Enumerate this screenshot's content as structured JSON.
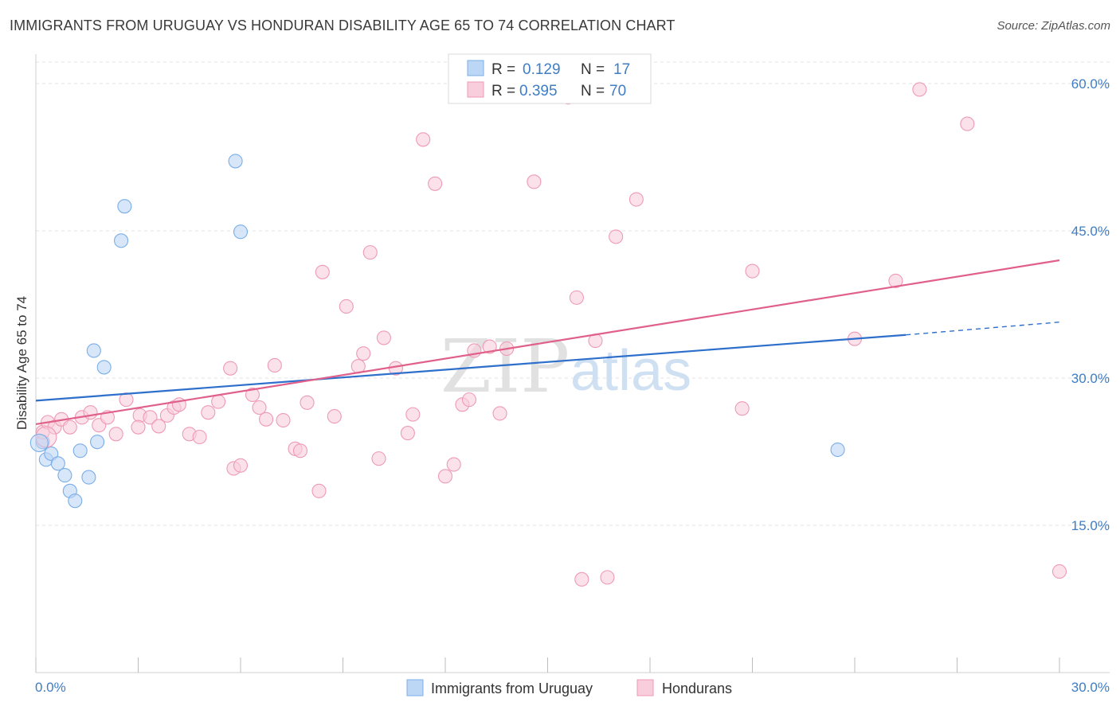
{
  "chart_data": {
    "type": "scatter",
    "title": "IMMIGRANTS FROM URUGUAY VS HONDURAN DISABILITY AGE 65 TO 74 CORRELATION CHART",
    "source": "Source: ZipAtlas.com",
    "xlabel": "",
    "ylabel": "Disability Age 65 to 74",
    "xlim": [
      0,
      30
    ],
    "ylim": [
      0,
      63
    ],
    "x_tick_labels": [
      "0.0%",
      "30.0%"
    ],
    "y_ticks": [
      15,
      30,
      45,
      60
    ],
    "y_tick_labels": [
      "15.0%",
      "30.0%",
      "45.0%",
      "60.0%"
    ],
    "grid": true,
    "watermark": {
      "zip": "ZIP",
      "atlas": "atlas"
    },
    "legend_top": [
      {
        "r_label": "R =",
        "r_value": "0.129",
        "n_label": "N =",
        "n_value": "17"
      },
      {
        "r_label": "R =",
        "r_value": "0.395",
        "n_label": "N =",
        "n_value": "70"
      }
    ],
    "series": [
      {
        "name": "Immigrants from Uruguay",
        "color": "#7aaee8",
        "fill": "#bcd6f5",
        "trend": {
          "x0": 0,
          "y0": 27.7,
          "x1": 25.5,
          "y1": 34.4,
          "dash_to_x": 30,
          "dash_to_y": 35.7,
          "color": "#2e6fcc"
        },
        "points": [
          [
            0.2,
            23.5
          ],
          [
            0.3,
            21.7
          ],
          [
            0.45,
            22.3
          ],
          [
            0.65,
            21.3
          ],
          [
            0.85,
            20.1
          ],
          [
            1.0,
            18.5
          ],
          [
            1.15,
            17.5
          ],
          [
            1.3,
            22.6
          ],
          [
            1.55,
            19.9
          ],
          [
            1.8,
            23.5
          ],
          [
            1.7,
            32.8
          ],
          [
            2.0,
            31.1
          ],
          [
            2.5,
            44.0
          ],
          [
            2.6,
            47.5
          ],
          [
            5.85,
            52.1
          ],
          [
            6.0,
            44.9
          ],
          [
            23.5,
            22.7
          ]
        ]
      },
      {
        "name": "Hondurans",
        "color": "#ee9ab5",
        "fill": "#f8cedc",
        "trend": {
          "x0": 0,
          "y0": 25.3,
          "x1": 30,
          "y1": 42.0,
          "color": "#e0608a"
        },
        "points": [
          [
            0.2,
            24.5
          ],
          [
            0.35,
            25.5
          ],
          [
            0.55,
            25.0
          ],
          [
            0.75,
            25.8
          ],
          [
            1.0,
            25.0
          ],
          [
            1.35,
            26.0
          ],
          [
            1.6,
            26.5
          ],
          [
            1.85,
            25.2
          ],
          [
            2.1,
            26.0
          ],
          [
            2.35,
            24.3
          ],
          [
            2.65,
            27.8
          ],
          [
            3.05,
            26.2
          ],
          [
            3.0,
            25.0
          ],
          [
            3.35,
            26.0
          ],
          [
            3.6,
            25.1
          ],
          [
            3.85,
            26.2
          ],
          [
            4.05,
            27.0
          ],
          [
            4.2,
            27.3
          ],
          [
            4.5,
            24.3
          ],
          [
            4.8,
            24.0
          ],
          [
            5.05,
            26.5
          ],
          [
            5.35,
            27.6
          ],
          [
            5.7,
            31.0
          ],
          [
            5.8,
            20.8
          ],
          [
            6.0,
            21.1
          ],
          [
            6.35,
            28.3
          ],
          [
            6.55,
            27.0
          ],
          [
            6.75,
            25.8
          ],
          [
            7.0,
            31.3
          ],
          [
            7.25,
            25.7
          ],
          [
            7.6,
            22.8
          ],
          [
            7.75,
            22.6
          ],
          [
            7.95,
            27.5
          ],
          [
            8.3,
            18.5
          ],
          [
            8.4,
            40.8
          ],
          [
            8.75,
            26.1
          ],
          [
            9.1,
            37.3
          ],
          [
            9.45,
            31.2
          ],
          [
            9.6,
            32.5
          ],
          [
            9.8,
            42.8
          ],
          [
            10.05,
            21.8
          ],
          [
            10.2,
            34.1
          ],
          [
            10.55,
            31.0
          ],
          [
            10.9,
            24.4
          ],
          [
            11.05,
            26.3
          ],
          [
            11.35,
            54.3
          ],
          [
            11.7,
            49.8
          ],
          [
            12.0,
            20.0
          ],
          [
            12.25,
            21.2
          ],
          [
            12.5,
            27.3
          ],
          [
            12.7,
            27.8
          ],
          [
            12.85,
            32.8
          ],
          [
            13.3,
            33.2
          ],
          [
            13.6,
            26.4
          ],
          [
            13.8,
            33.0
          ],
          [
            14.6,
            50.0
          ],
          [
            15.6,
            58.6
          ],
          [
            15.85,
            38.2
          ],
          [
            16.0,
            9.5
          ],
          [
            16.4,
            33.8
          ],
          [
            16.75,
            9.7
          ],
          [
            17.0,
            44.4
          ],
          [
            17.6,
            48.2
          ],
          [
            20.7,
            26.9
          ],
          [
            21.0,
            40.9
          ],
          [
            24.0,
            34.0
          ],
          [
            25.2,
            39.9
          ],
          [
            25.9,
            59.4
          ],
          [
            27.3,
            55.9
          ],
          [
            30.0,
            10.3
          ]
        ]
      }
    ]
  }
}
